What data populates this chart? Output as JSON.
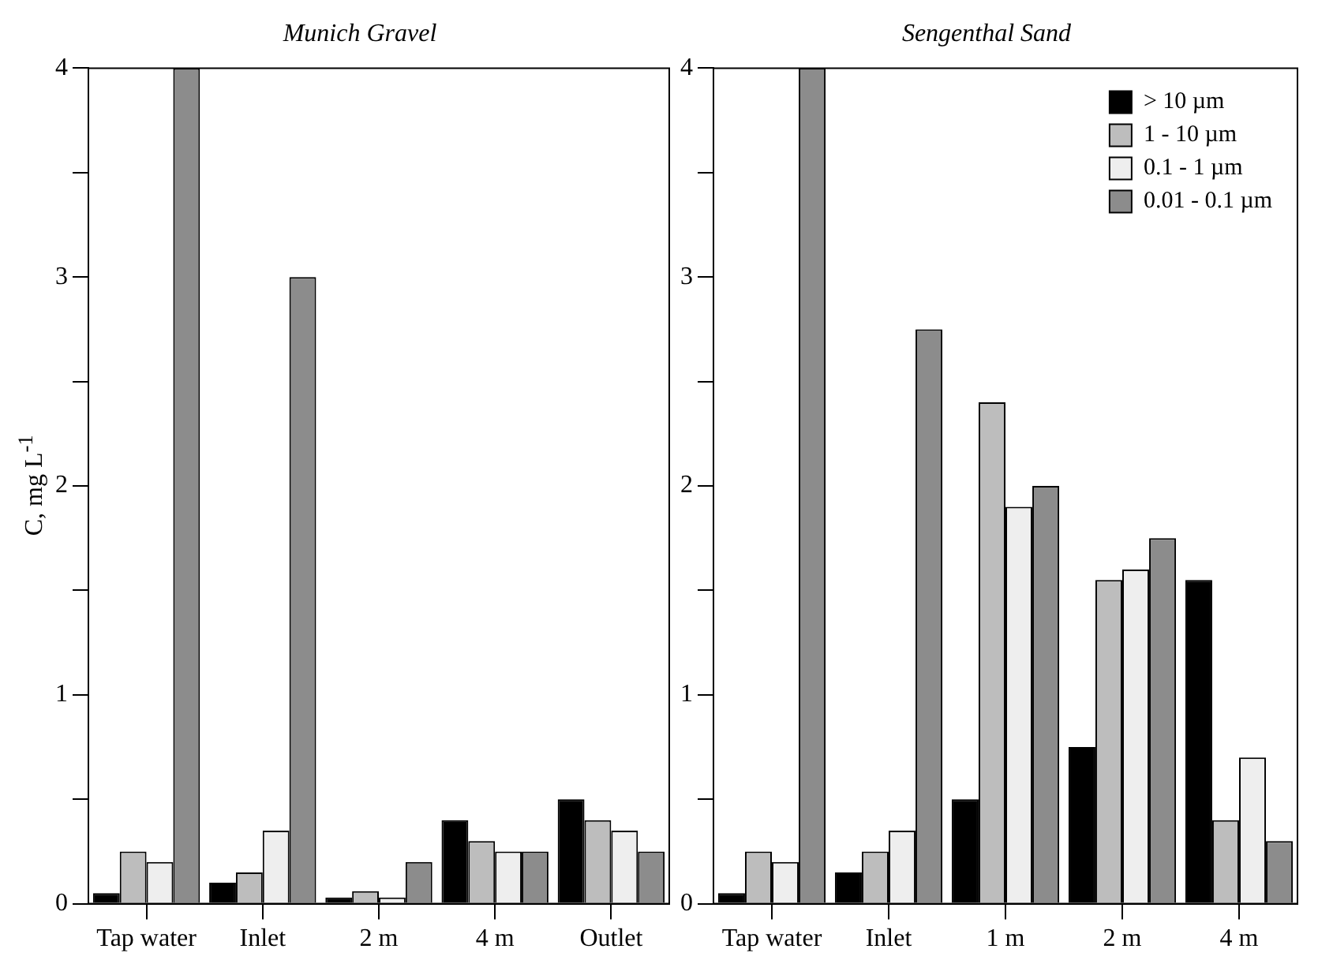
{
  "chart_data": [
    {
      "type": "bar",
      "title": "Munich Gravel",
      "ylabel": "C, mg L$^{-1}$",
      "categories": [
        "Tap water",
        "Inlet",
        "2 m",
        "4 m",
        "Outlet"
      ],
      "ylim": [
        0,
        4
      ],
      "yticks": [
        0,
        {
          "value": 0.5,
          "label": null
        },
        1,
        {
          "value": 1.5,
          "label": null
        },
        2,
        {
          "value": 2.5,
          "label": null
        },
        3,
        {
          "value": 3.5,
          "label": null
        },
        4
      ],
      "grid": false,
      "legend": false,
      "series": [
        {
          "color": "#000000",
          "values": [
            0.05,
            0.1,
            0.03,
            0.4,
            0.5
          ]
        },
        {
          "color": "#bdbdbd",
          "values": [
            0.25,
            0.15,
            0.06,
            0.3,
            0.4
          ]
        },
        {
          "color": "#eeeeee",
          "values": [
            0.2,
            0.35,
            0.03,
            0.25,
            0.35
          ]
        },
        {
          "color": "#8c8c8c",
          "values": [
            4,
            3,
            0.2,
            0.25,
            0.25
          ]
        }
      ]
    },
    {
      "type": "bar",
      "title": "Sengenthal Sand",
      "categories": [
        "Tap water",
        "Inlet",
        "1 m",
        "2 m",
        "4 m"
      ],
      "ylim": [
        0,
        4
      ],
      "yticks": [
        0,
        {
          "value": 0.5,
          "label": null
        },
        1,
        {
          "value": 1.5,
          "label": null
        },
        2,
        {
          "value": 2.5,
          "label": null
        },
        3,
        {
          "value": 3.5,
          "label": null
        },
        4
      ],
      "grid": false,
      "legend": "top right",
      "series": [
        {
          "name": "> 10 µm",
          "color": "#000000",
          "values": [
            0.05,
            0.15,
            0.5,
            0.75,
            1.55
          ]
        },
        {
          "name": "1 - 10 µm",
          "color": "#bdbdbd",
          "values": [
            0.25,
            0.25,
            2.4,
            1.55,
            0.4
          ]
        },
        {
          "name": "0.1 - 1 µm",
          "color": "#eeeeee",
          "values": [
            0.2,
            0.35,
            1.9,
            1.6,
            0.7
          ]
        },
        {
          "name": "0.01 - 0.1 µm",
          "color": "#8c8c8c",
          "values": [
            4,
            2.75,
            2.0,
            1.75,
            0.3
          ]
        }
      ]
    }
  ]
}
